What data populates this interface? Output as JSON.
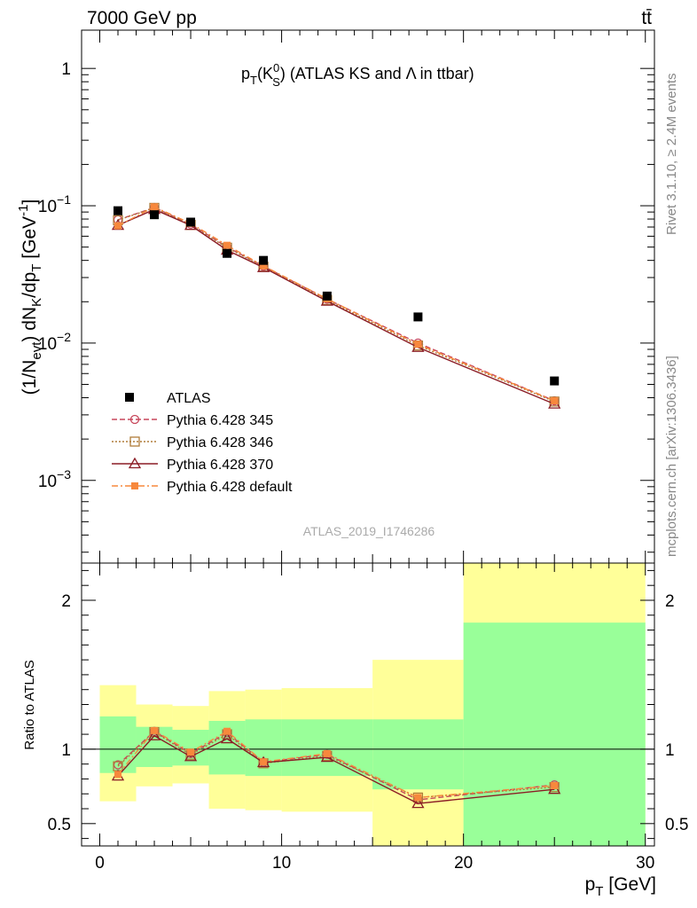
{
  "header": {
    "left": "7000 GeV pp",
    "right": "tt̄"
  },
  "side_labels": {
    "rivet": "Rivet 3.1.10, ≥ 2.4M events",
    "mcplots": "mcplots.cern.ch [arXiv:1306.3436]"
  },
  "analysis_tag": "ATLAS_2019_I1746286",
  "chart_data": {
    "type": "line",
    "title": {
      "pre": "p",
      "sub1": "T",
      "mid": "(K",
      "sup": "0",
      "sub2": "S",
      "post": ") (ATLAS KS and Λ in ttbar)"
    },
    "xlabel": {
      "main": "p",
      "sub": "T",
      "unit": " [GeV]"
    },
    "ylabel_top": "(1/N_evt) dN_K/dp_T [GeV^-1]",
    "ylabel_bottom": "Ratio to ATLAS",
    "xlim": [
      -1,
      30.5
    ],
    "ylim_top": [
      0.00025,
      1.9
    ],
    "ylim_ratio": [
      0.35,
      2.25
    ],
    "yscale_top": "log",
    "x_ticks": [
      "0",
      "10",
      "20",
      "30"
    ],
    "y_ticks_top": [
      {
        "value": 1,
        "base": "1",
        "exp": ""
      },
      {
        "value": 0.1,
        "base": "10",
        "exp": "−1"
      },
      {
        "value": 0.01,
        "base": "10",
        "exp": "−2"
      },
      {
        "value": 0.001,
        "base": "10",
        "exp": "−3"
      }
    ],
    "y_ticks_ratio": [
      "0.5",
      "1",
      "2"
    ],
    "legend_position": "lower-left",
    "bins": [
      {
        "lo": 0,
        "hi": 2,
        "x": 1
      },
      {
        "lo": 2,
        "hi": 4,
        "x": 3
      },
      {
        "lo": 4,
        "hi": 6,
        "x": 5
      },
      {
        "lo": 6,
        "hi": 8,
        "x": 7
      },
      {
        "lo": 8,
        "hi": 10,
        "x": 9
      },
      {
        "lo": 10,
        "hi": 15,
        "x": 12.5
      },
      {
        "lo": 15,
        "hi": 20,
        "x": 17.5
      },
      {
        "lo": 20,
        "hi": 30,
        "x": 25
      }
    ],
    "data": {
      "name": "ATLAS",
      "y": [
        0.092,
        0.086,
        0.076,
        0.045,
        0.04,
        0.022,
        0.0155,
        0.0053
      ]
    },
    "uncertainty_bands": {
      "inner": [
        [
          0.84,
          1.22
        ],
        [
          0.88,
          1.15
        ],
        [
          0.89,
          1.13
        ],
        [
          0.83,
          1.19
        ],
        [
          0.82,
          1.2
        ],
        [
          0.82,
          1.2
        ],
        [
          0.73,
          1.2
        ],
        [
          0.35,
          1.85
        ]
      ],
      "outer": [
        [
          0.65,
          1.43
        ],
        [
          0.75,
          1.3
        ],
        [
          0.77,
          1.29
        ],
        [
          0.6,
          1.39
        ],
        [
          0.59,
          1.4
        ],
        [
          0.58,
          1.41
        ],
        [
          0.35,
          1.6
        ],
        [
          0.35,
          2.25
        ]
      ],
      "inner_color": "#99ff99",
      "outer_color": "#ffff99"
    },
    "series": [
      {
        "name": "Pythia 6.428 345",
        "color": "#c7475b",
        "dash": "6,3",
        "marker": "circle",
        "y": [
          0.079,
          0.097,
          0.0735,
          0.05,
          0.0363,
          0.0209,
          0.01,
          0.0038
        ],
        "ratio": [
          0.895,
          1.12,
          0.97,
          1.11,
          0.912,
          0.965,
          0.66,
          0.76
        ]
      },
      {
        "name": "Pythia 6.428 346",
        "color": "#b07d3a",
        "dash": "2,2",
        "marker": "square",
        "y": [
          0.0785,
          0.0965,
          0.0725,
          0.0495,
          0.036,
          0.0206,
          0.0096,
          0.00375
        ],
        "ratio": [
          0.885,
          1.115,
          0.962,
          1.1,
          0.905,
          0.955,
          0.675,
          0.745
        ]
      },
      {
        "name": "Pythia 6.428 370",
        "color": "#8b1c25",
        "dash": "",
        "marker": "triangle",
        "y": [
          0.072,
          0.094,
          0.072,
          0.0475,
          0.0355,
          0.0202,
          0.0093,
          0.0036
        ],
        "ratio": [
          0.82,
          1.09,
          0.95,
          1.07,
          0.91,
          0.945,
          0.635,
          0.73
        ]
      },
      {
        "name": "Pythia 6.428 default",
        "color": "#f7883c",
        "dash": "7,3,2,3",
        "marker": "filled-square",
        "y": [
          0.0715,
          0.098,
          0.0745,
          0.0515,
          0.0365,
          0.021,
          0.0098,
          0.0038
        ],
        "ratio": [
          0.83,
          1.125,
          0.98,
          1.12,
          0.915,
          0.97,
          0.675,
          0.755
        ]
      }
    ]
  }
}
